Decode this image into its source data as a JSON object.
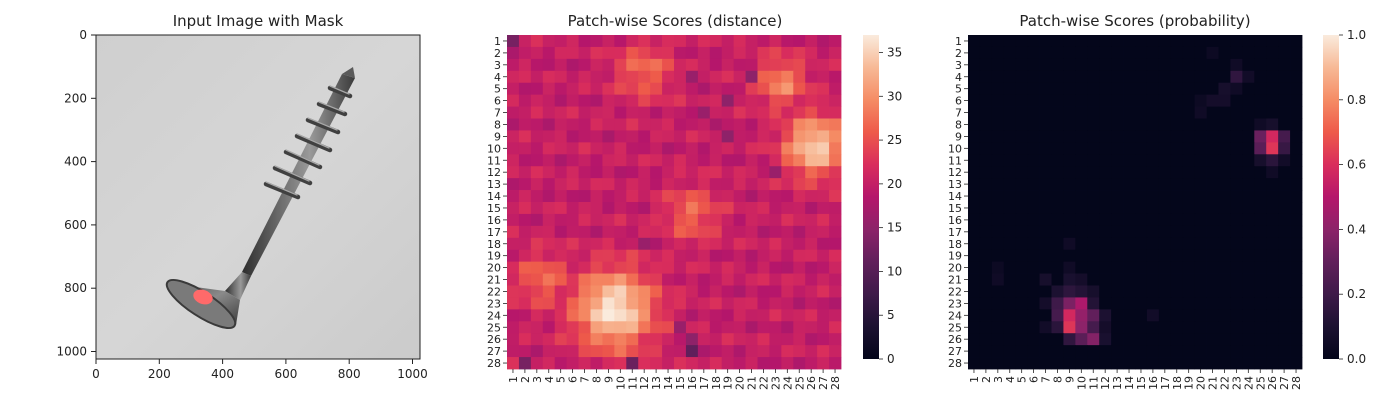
{
  "chart_data": [
    {
      "type": "image",
      "title": "Input Image with Mask",
      "xlim": [
        0,
        1024
      ],
      "ylim": [
        1024,
        0
      ],
      "xticks": [
        "0",
        "200",
        "400",
        "600",
        "800",
        "1000"
      ],
      "yticks": [
        "0",
        "200",
        "400",
        "600",
        "800",
        "1000"
      ],
      "content": "screw on gray background",
      "mask_color": "#ff6a6a"
    },
    {
      "type": "heatmap",
      "title": "Patch-wise Scores (distance)",
      "rows": [
        "1",
        "2",
        "3",
        "4",
        "5",
        "6",
        "7",
        "8",
        "9",
        "10",
        "11",
        "12",
        "13",
        "14",
        "15",
        "16",
        "17",
        "18",
        "19",
        "20",
        "21",
        "22",
        "23",
        "24",
        "25",
        "26",
        "27",
        "28"
      ],
      "cols": [
        "1",
        "2",
        "3",
        "4",
        "5",
        "6",
        "7",
        "8",
        "9",
        "10",
        "11",
        "12",
        "13",
        "14",
        "15",
        "16",
        "17",
        "18",
        "19",
        "20",
        "21",
        "22",
        "23",
        "24",
        "25",
        "26",
        "27",
        "28"
      ],
      "colorbar_ticks": [
        "0",
        "5",
        "10",
        "15",
        "20",
        "25",
        "30",
        "35"
      ],
      "vmin": 0,
      "vmax": 37,
      "baseline": 20,
      "hotspots": [
        {
          "row": 23.5,
          "col": 9.5,
          "peak": 37,
          "spread": 2.3
        },
        {
          "row": 9.8,
          "col": 26.3,
          "peak": 35,
          "spread": 1.8
        },
        {
          "row": 15.5,
          "col": 16,
          "peak": 27,
          "spread": 1.6
        },
        {
          "row": 4.5,
          "col": 23.5,
          "peak": 29,
          "spread": 1.5
        },
        {
          "row": 3.5,
          "col": 12,
          "peak": 27,
          "spread": 1.7
        },
        {
          "row": 21,
          "col": 3.5,
          "peak": 27,
          "spread": 1.6
        }
      ],
      "cold_cells": [
        {
          "row": 1,
          "col": 1,
          "value": 13
        },
        {
          "row": 27,
          "col": 16,
          "value": 11
        },
        {
          "row": 28,
          "col": 2,
          "value": 13
        },
        {
          "row": 28,
          "col": 11,
          "value": 12
        },
        {
          "row": 26,
          "col": 16,
          "value": 15
        },
        {
          "row": 25,
          "col": 15,
          "value": 16
        },
        {
          "row": 7,
          "col": 17,
          "value": 16
        },
        {
          "row": 6,
          "col": 19,
          "value": 15
        },
        {
          "row": 4,
          "col": 21,
          "value": 15
        },
        {
          "row": 9,
          "col": 19,
          "value": 15
        },
        {
          "row": 12,
          "col": 23,
          "value": 16
        },
        {
          "row": 18,
          "col": 12,
          "value": 16
        },
        {
          "row": 4,
          "col": 16,
          "value": 16
        }
      ]
    },
    {
      "type": "heatmap",
      "title": "Patch-wise Scores (probability)",
      "rows": [
        "1",
        "2",
        "3",
        "4",
        "5",
        "6",
        "7",
        "8",
        "9",
        "10",
        "11",
        "12",
        "13",
        "14",
        "15",
        "16",
        "17",
        "18",
        "19",
        "20",
        "21",
        "22",
        "23",
        "24",
        "25",
        "26",
        "27",
        "28"
      ],
      "cols": [
        "1",
        "2",
        "3",
        "4",
        "5",
        "6",
        "7",
        "8",
        "9",
        "10",
        "11",
        "12",
        "13",
        "14",
        "15",
        "16",
        "17",
        "18",
        "19",
        "20",
        "21",
        "22",
        "23",
        "24",
        "25",
        "26",
        "27",
        "28"
      ],
      "colorbar_ticks": [
        "0.0",
        "0.2",
        "0.4",
        "0.6",
        "0.8",
        "1.0"
      ],
      "vmin": 0,
      "vmax": 1,
      "cells": [
        {
          "row": 24,
          "col": 9,
          "value": 0.58
        },
        {
          "row": 25,
          "col": 9,
          "value": 0.62
        },
        {
          "row": 23,
          "col": 10,
          "value": 0.48
        },
        {
          "row": 24,
          "col": 10,
          "value": 0.42
        },
        {
          "row": 25,
          "col": 10,
          "value": 0.4
        },
        {
          "row": 23,
          "col": 9,
          "value": 0.36
        },
        {
          "row": 26,
          "col": 11,
          "value": 0.38
        },
        {
          "row": 26,
          "col": 10,
          "value": 0.28
        },
        {
          "row": 24,
          "col": 11,
          "value": 0.3
        },
        {
          "row": 23,
          "col": 8,
          "value": 0.2
        },
        {
          "row": 24,
          "col": 8,
          "value": 0.22
        },
        {
          "row": 25,
          "col": 11,
          "value": 0.22
        },
        {
          "row": 22,
          "col": 9,
          "value": 0.15
        },
        {
          "row": 22,
          "col": 10,
          "value": 0.12
        },
        {
          "row": 22,
          "col": 8,
          "value": 0.1
        },
        {
          "row": 25,
          "col": 8,
          "value": 0.14
        },
        {
          "row": 26,
          "col": 9,
          "value": 0.16
        },
        {
          "row": 24,
          "col": 12,
          "value": 0.1
        },
        {
          "row": 23,
          "col": 11,
          "value": 0.12
        },
        {
          "row": 21,
          "col": 7,
          "value": 0.08
        },
        {
          "row": 21,
          "col": 9,
          "value": 0.09
        },
        {
          "row": 21,
          "col": 10,
          "value": 0.07
        },
        {
          "row": 22,
          "col": 11,
          "value": 0.08
        },
        {
          "row": 23,
          "col": 7,
          "value": 0.07
        },
        {
          "row": 25,
          "col": 7,
          "value": 0.06
        },
        {
          "row": 26,
          "col": 12,
          "value": 0.09
        },
        {
          "row": 25,
          "col": 12,
          "value": 0.07
        },
        {
          "row": 24,
          "col": 16,
          "value": 0.06
        },
        {
          "row": 20,
          "col": 9,
          "value": 0.05
        },
        {
          "row": 18,
          "col": 9,
          "value": 0.05
        },
        {
          "row": 21,
          "col": 3,
          "value": 0.05
        },
        {
          "row": 20,
          "col": 3,
          "value": 0.04
        },
        {
          "row": 9,
          "col": 26,
          "value": 0.58
        },
        {
          "row": 10,
          "col": 26,
          "value": 0.62
        },
        {
          "row": 9,
          "col": 25,
          "value": 0.32
        },
        {
          "row": 10,
          "col": 25,
          "value": 0.28
        },
        {
          "row": 9,
          "col": 27,
          "value": 0.22
        },
        {
          "row": 10,
          "col": 27,
          "value": 0.18
        },
        {
          "row": 11,
          "col": 26,
          "value": 0.14
        },
        {
          "row": 11,
          "col": 25,
          "value": 0.08
        },
        {
          "row": 11,
          "col": 27,
          "value": 0.06
        },
        {
          "row": 8,
          "col": 26,
          "value": 0.08
        },
        {
          "row": 8,
          "col": 25,
          "value": 0.05
        },
        {
          "row": 12,
          "col": 26,
          "value": 0.05
        },
        {
          "row": 4,
          "col": 23,
          "value": 0.16
        },
        {
          "row": 4,
          "col": 24,
          "value": 0.06
        },
        {
          "row": 3,
          "col": 23,
          "value": 0.05
        },
        {
          "row": 5,
          "col": 22,
          "value": 0.08
        },
        {
          "row": 6,
          "col": 21,
          "value": 0.07
        },
        {
          "row": 6,
          "col": 22,
          "value": 0.07
        },
        {
          "row": 5,
          "col": 23,
          "value": 0.05
        },
        {
          "row": 7,
          "col": 20,
          "value": 0.05
        },
        {
          "row": 6,
          "col": 20,
          "value": 0.04
        },
        {
          "row": 2,
          "col": 21,
          "value": 0.04
        }
      ]
    }
  ]
}
